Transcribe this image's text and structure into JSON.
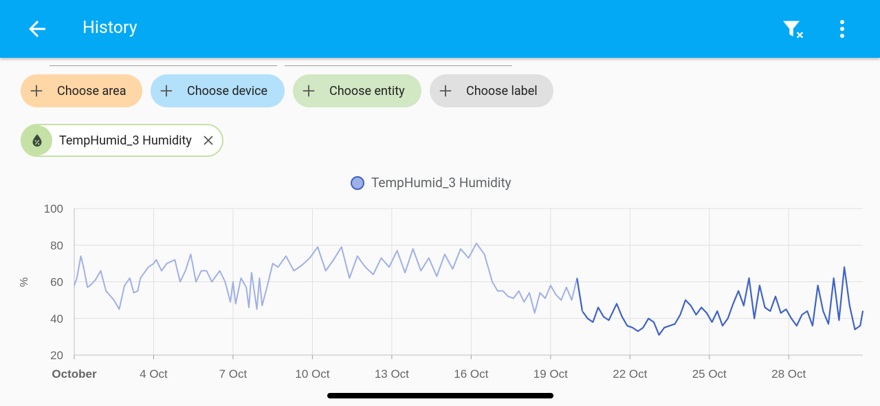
{
  "header": {
    "title": "History",
    "back_icon": "arrow-left-icon",
    "filter_clear_icon": "filter-remove-icon",
    "menu_icon": "dots-vertical-icon"
  },
  "filters": {
    "chips": [
      {
        "label": "Choose area",
        "color": "#ffd6a6"
      },
      {
        "label": "Choose device",
        "color": "#b3e0fa"
      },
      {
        "label": "Choose entity",
        "color": "#d2e7c3"
      },
      {
        "label": "Choose label",
        "color": "#e0e0e0"
      }
    ],
    "selected_entity": {
      "label": "TempHumid_3 Humidity",
      "icon": "water-percent-icon",
      "accent": "#c5e1a5"
    }
  },
  "chart_data": {
    "type": "line",
    "title": "",
    "legend": [
      {
        "name": "TempHumid_3 Humidity",
        "color": "#3f63c8"
      }
    ],
    "ylabel": "%",
    "ylim": [
      20,
      100
    ],
    "yticks": [
      "20",
      "40",
      "60",
      "80",
      "100"
    ],
    "xticks": [
      "October",
      "4 Oct",
      "7 Oct",
      "10 Oct",
      "13 Oct",
      "16 Oct",
      "19 Oct",
      "22 Oct",
      "25 Oct",
      "28 Oct"
    ],
    "xlim": [
      1,
      30.8
    ],
    "grid": true,
    "series": [
      {
        "name": "TempHumid_3 Humidity",
        "faded_until_day": 20.2,
        "faded_color": "#9fb0e8",
        "color": "#3f63c8",
        "x": [
          1.0,
          1.1,
          1.25,
          1.35,
          1.5,
          1.6,
          1.8,
          2.0,
          2.2,
          2.5,
          2.7,
          2.9,
          3.1,
          3.25,
          3.4,
          3.5,
          3.8,
          4.0,
          4.1,
          4.3,
          4.5,
          4.8,
          5.0,
          5.2,
          5.4,
          5.6,
          5.8,
          6.0,
          6.2,
          6.5,
          6.7,
          6.9,
          7.0,
          7.1,
          7.3,
          7.5,
          7.6,
          7.7,
          7.9,
          8.0,
          8.1,
          8.3,
          8.5,
          8.7,
          9.0,
          9.3,
          9.6,
          9.9,
          10.2,
          10.5,
          10.8,
          11.1,
          11.4,
          11.7,
          12.0,
          12.3,
          12.6,
          12.9,
          13.2,
          13.5,
          13.8,
          14.1,
          14.4,
          14.7,
          15.0,
          15.3,
          15.6,
          15.9,
          16.2,
          16.5,
          16.8,
          17.0,
          17.2,
          17.4,
          17.6,
          17.8,
          18.0,
          18.2,
          18.4,
          18.6,
          18.8,
          19.0,
          19.2,
          19.4,
          19.6,
          19.8,
          20.0,
          20.2,
          20.4,
          20.6,
          20.8,
          21.0,
          21.2,
          21.5,
          21.7,
          21.9,
          22.1,
          22.3,
          22.5,
          22.7,
          22.9,
          23.1,
          23.3,
          23.5,
          23.7,
          23.9,
          24.1,
          24.3,
          24.5,
          24.7,
          24.9,
          25.1,
          25.3,
          25.5,
          25.7,
          25.9,
          26.1,
          26.3,
          26.5,
          26.7,
          26.9,
          27.1,
          27.3,
          27.5,
          27.7,
          27.9,
          28.1,
          28.3,
          28.5,
          28.7,
          28.9,
          29.1,
          29.3,
          29.5,
          29.7,
          29.9,
          30.1,
          30.3,
          30.5,
          30.7,
          30.8
        ],
        "y": [
          58,
          62,
          74,
          68,
          57,
          58,
          61,
          66,
          55,
          50,
          45,
          58,
          62,
          54,
          55,
          62,
          68,
          70,
          72,
          66,
          70,
          72,
          60,
          66,
          75,
          60,
          66,
          66,
          60,
          66,
          60,
          49,
          60,
          48,
          62,
          57,
          46,
          65,
          45,
          62,
          47,
          58,
          70,
          68,
          74,
          66,
          69,
          73,
          79,
          66,
          72,
          79,
          62,
          74,
          68,
          64,
          73,
          68,
          77,
          65,
          78,
          66,
          73,
          63,
          75,
          67,
          78,
          73,
          81,
          75,
          60,
          55,
          55,
          52,
          51,
          55,
          49,
          54,
          43,
          54,
          51,
          58,
          53,
          50,
          57,
          50,
          62,
          44,
          40,
          38,
          46,
          41,
          39,
          48,
          41,
          36,
          35,
          33,
          35,
          40,
          38,
          31,
          35,
          36,
          37,
          42,
          50,
          47,
          42,
          46,
          43,
          38,
          44,
          36,
          40,
          48,
          55,
          47,
          62,
          40,
          58,
          46,
          44,
          52,
          43,
          45,
          40,
          36,
          42,
          44,
          36,
          58,
          44,
          37,
          62,
          39,
          68,
          47,
          34,
          36,
          44
        ]
      }
    ]
  }
}
